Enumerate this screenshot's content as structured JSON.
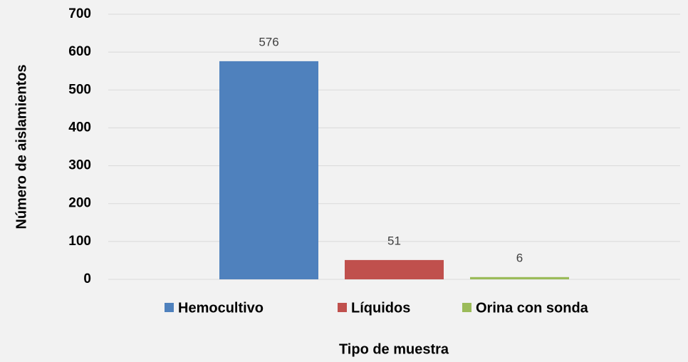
{
  "chart_data": {
    "type": "bar",
    "categories": [
      null
    ],
    "series": [
      {
        "name": "Hemocultivo",
        "color": "#4f81bd",
        "values": [
          576
        ]
      },
      {
        "name": "Líquidos",
        "color": "#c0504d",
        "values": [
          51
        ]
      },
      {
        "name": "Orina con sonda",
        "color": "#9bbb59",
        "values": [
          6
        ]
      }
    ],
    "xlabel": "Tipo de muestra",
    "ylabel": "Número de aislamientos",
    "ylim": [
      0,
      700
    ],
    "yticks": [
      0,
      100,
      200,
      300,
      400,
      500,
      600,
      700
    ],
    "grid": true,
    "legend": "bottom"
  }
}
